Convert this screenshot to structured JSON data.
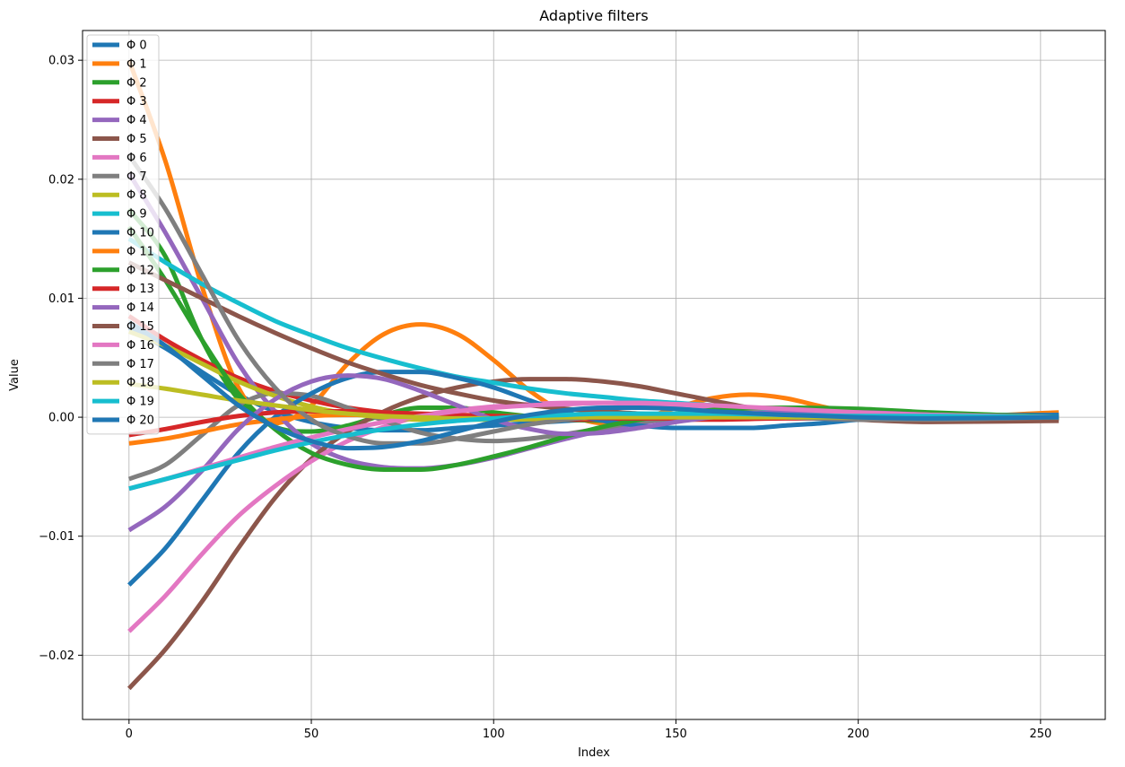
{
  "chart_data": {
    "type": "line",
    "title": "Adaptive filters",
    "xlabel": "Index",
    "ylabel": "Value",
    "xlim": [
      -12.75,
      267.75
    ],
    "ylim": [
      -0.0254,
      0.0325
    ],
    "xticks": [
      0,
      50,
      100,
      150,
      200,
      250
    ],
    "xtick_labels": [
      "0",
      "50",
      "100",
      "150",
      "200",
      "250"
    ],
    "yticks": [
      -0.02,
      -0.01,
      0.0,
      0.01,
      0.02,
      0.03
    ],
    "ytick_labels": [
      "−0.02",
      "−0.01",
      "0.00",
      "0.01",
      "0.02",
      "0.03"
    ],
    "grid": true,
    "legend_position": "top-left",
    "series": [
      {
        "name": "Φ 0",
        "color": "#1f77b4",
        "x": [
          0,
          10,
          20,
          30,
          40,
          50,
          60,
          70,
          80,
          90,
          100,
          120,
          140,
          160,
          180,
          200,
          220,
          255
        ],
        "y": [
          0.0075,
          0.0058,
          0.0038,
          0.0019,
          0.0005,
          -0.0004,
          -0.0009,
          -0.0011,
          -0.0011,
          -0.0009,
          -0.0007,
          -0.0003,
          0.0,
          0.0001,
          0.0001,
          0.0001,
          0.0001,
          0.0
        ]
      },
      {
        "name": "Φ 1",
        "color": "#ff7f0e",
        "x": [
          0,
          10,
          20,
          30,
          40,
          50,
          60,
          70,
          80,
          90,
          100,
          110,
          120,
          130,
          140,
          150,
          160,
          170,
          180,
          190,
          200,
          220,
          255
        ],
        "y": [
          0.03,
          0.0215,
          0.011,
          0.0025,
          -0.0005,
          0.001,
          0.0045,
          0.007,
          0.0078,
          0.007,
          0.0048,
          0.0022,
          0.0003,
          -0.0005,
          -0.0002,
          0.0008,
          0.0016,
          0.0019,
          0.0016,
          0.0009,
          0.0003,
          0.0,
          0.0004
        ]
      },
      {
        "name": "Φ 2",
        "color": "#2ca02c",
        "x": [
          0,
          10,
          20,
          30,
          40,
          50,
          60,
          70,
          80,
          90,
          100,
          120,
          140,
          160,
          180,
          200,
          220,
          255
        ],
        "y": [
          0.0175,
          0.0135,
          0.0065,
          0.0015,
          -0.0008,
          -0.0012,
          -0.0007,
          0.0002,
          0.0008,
          0.0008,
          0.0004,
          -0.0002,
          -0.0003,
          0.0,
          0.0001,
          0.0001,
          0.0,
          0.0
        ]
      },
      {
        "name": "Φ 3",
        "color": "#d62728",
        "x": [
          0,
          10,
          20,
          30,
          40,
          50,
          60,
          70,
          80,
          90,
          100,
          120,
          140,
          160,
          180,
          200,
          220,
          255
        ],
        "y": [
          0.0085,
          0.0065,
          0.0048,
          0.0033,
          0.0022,
          0.0014,
          0.0008,
          0.0004,
          0.0001,
          0.0,
          -0.0001,
          -0.0002,
          -0.0002,
          -0.0002,
          -0.0001,
          -0.0001,
          0.0,
          0.0
        ]
      },
      {
        "name": "Φ 4",
        "color": "#9467bd",
        "x": [
          0,
          10,
          20,
          30,
          40,
          50,
          60,
          70,
          80,
          90,
          100,
          110,
          120,
          130,
          140,
          150,
          160,
          180,
          200,
          220,
          255
        ],
        "y": [
          0.0205,
          0.0155,
          0.01,
          0.0045,
          0.0005,
          -0.0022,
          -0.0036,
          -0.0042,
          -0.0043,
          -0.004,
          -0.0034,
          -0.0026,
          -0.0018,
          -0.0011,
          -0.0005,
          -0.0001,
          0.0002,
          0.0004,
          0.0004,
          0.0002,
          0.0
        ]
      },
      {
        "name": "Φ 5",
        "color": "#8c564b",
        "x": [
          0,
          10,
          20,
          30,
          40,
          50,
          60,
          70,
          80,
          90,
          100,
          110,
          120,
          130,
          140,
          150,
          160,
          170,
          180,
          190,
          200,
          220,
          255
        ],
        "y": [
          -0.0228,
          -0.0195,
          -0.0155,
          -0.011,
          -0.0068,
          -0.0035,
          -0.0012,
          0.0005,
          0.0017,
          0.0025,
          0.003,
          0.0032,
          0.0032,
          0.003,
          0.0026,
          0.002,
          0.0014,
          0.0008,
          0.0003,
          0.0,
          -0.0002,
          -0.0004,
          -0.0003
        ]
      },
      {
        "name": "Φ 6",
        "color": "#e377c2",
        "x": [
          0,
          10,
          20,
          30,
          40,
          50,
          60,
          70,
          80,
          90,
          100,
          110,
          120,
          130,
          140,
          150,
          160,
          180,
          200,
          220,
          255
        ],
        "y": [
          -0.018,
          -0.015,
          -0.0115,
          -0.0083,
          -0.0058,
          -0.0037,
          -0.002,
          -0.0008,
          0.0001,
          0.0006,
          0.0009,
          0.0011,
          0.0012,
          0.0012,
          0.0011,
          0.0009,
          0.0007,
          0.0004,
          0.0002,
          0.0001,
          0.0
        ]
      },
      {
        "name": "Φ 7",
        "color": "#7f7f7f",
        "x": [
          0,
          10,
          20,
          30,
          40,
          50,
          60,
          70,
          80,
          90,
          100,
          110,
          120,
          130,
          140,
          150,
          160,
          170,
          180,
          200,
          220,
          255
        ],
        "y": [
          -0.0052,
          -0.004,
          -0.0015,
          0.001,
          0.002,
          0.0018,
          0.0008,
          -0.0003,
          -0.0013,
          -0.0018,
          -0.002,
          -0.0018,
          -0.0014,
          -0.0009,
          -0.0004,
          -0.0001,
          0.0002,
          0.0003,
          0.0003,
          0.0001,
          0.0,
          -0.0001
        ]
      },
      {
        "name": "Φ 8",
        "color": "#bcbd22",
        "x": [
          0,
          10,
          20,
          30,
          40,
          50,
          60,
          70,
          80,
          90,
          100,
          120,
          140,
          160,
          180,
          200,
          220,
          255
        ],
        "y": [
          0.0072,
          0.006,
          0.0045,
          0.003,
          0.0018,
          0.0009,
          0.0003,
          0.0,
          -0.0002,
          -0.0002,
          -0.0002,
          -0.0001,
          0.0,
          0.0,
          0.0,
          0.0,
          0.0,
          0.0
        ]
      },
      {
        "name": "Φ 9",
        "color": "#17becf",
        "x": [
          0,
          10,
          20,
          30,
          40,
          50,
          60,
          70,
          80,
          90,
          100,
          110,
          120,
          130,
          140,
          150,
          160,
          170,
          180,
          190,
          200,
          220,
          255
        ],
        "y": [
          0.015,
          0.013,
          0.0112,
          0.0096,
          0.0081,
          0.0069,
          0.0058,
          0.0049,
          0.0041,
          0.0034,
          0.0029,
          0.0024,
          0.002,
          0.0017,
          0.0014,
          0.0012,
          0.001,
          0.0008,
          0.0007,
          0.0006,
          0.0005,
          0.0003,
          0.0001
        ]
      },
      {
        "name": "Φ 10",
        "color": "#1f77b4",
        "x": [
          0,
          10,
          20,
          30,
          40,
          50,
          60,
          70,
          80,
          90,
          100,
          110,
          120,
          130,
          140,
          150,
          160,
          170,
          180,
          190,
          200,
          220,
          255
        ],
        "y": [
          -0.0141,
          -0.011,
          -0.007,
          -0.003,
          0.0,
          0.002,
          0.0033,
          0.0038,
          0.0038,
          0.0033,
          0.0025,
          0.0014,
          0.0004,
          -0.0003,
          -0.0007,
          -0.0009,
          -0.0009,
          -0.0009,
          -0.0007,
          -0.0005,
          -0.0002,
          0.0001,
          0.0002
        ]
      },
      {
        "name": "Φ 11",
        "color": "#ff7f0e",
        "x": [
          0,
          10,
          20,
          30,
          40,
          50,
          60,
          70,
          80,
          90,
          100,
          120,
          140,
          160,
          180,
          200,
          220,
          255
        ],
        "y": [
          -0.0022,
          -0.0018,
          -0.0012,
          -0.0006,
          -0.0002,
          0.0001,
          0.0002,
          0.0002,
          0.0002,
          0.0001,
          0.0001,
          0.0,
          0.0,
          0.0,
          0.0,
          0.0,
          0.0,
          0.0
        ]
      },
      {
        "name": "Φ 12",
        "color": "#2ca02c",
        "x": [
          0,
          10,
          20,
          30,
          40,
          50,
          60,
          70,
          80,
          90,
          100,
          110,
          120,
          130,
          140,
          150,
          160,
          180,
          200,
          220,
          255
        ],
        "y": [
          0.016,
          0.0115,
          0.0065,
          0.002,
          -0.001,
          -0.003,
          -0.004,
          -0.0044,
          -0.0044,
          -0.004,
          -0.0033,
          -0.0025,
          -0.0016,
          -0.0008,
          -0.0002,
          0.0003,
          0.0006,
          0.0008,
          0.0007,
          0.0004,
          0.0
        ]
      },
      {
        "name": "Φ 13",
        "color": "#d62728",
        "x": [
          0,
          10,
          20,
          30,
          40,
          50,
          60,
          70,
          80,
          90,
          100,
          120,
          140,
          160,
          180,
          200,
          220,
          255
        ],
        "y": [
          -0.0015,
          -0.001,
          -0.0004,
          0.0001,
          0.0004,
          0.0005,
          0.0005,
          0.0004,
          0.0003,
          0.0002,
          0.0001,
          0.0,
          -0.0001,
          -0.0001,
          0.0,
          0.0,
          0.0,
          0.0
        ]
      },
      {
        "name": "Φ 14",
        "color": "#9467bd",
        "x": [
          0,
          10,
          20,
          30,
          40,
          50,
          60,
          70,
          80,
          90,
          100,
          110,
          120,
          130,
          140,
          150,
          160,
          180,
          200,
          220,
          255
        ],
        "y": [
          -0.0095,
          -0.0075,
          -0.0045,
          -0.001,
          0.0015,
          0.003,
          0.0035,
          0.0032,
          0.0022,
          0.001,
          -0.0002,
          -0.001,
          -0.0014,
          -0.0013,
          -0.0009,
          -0.0004,
          0.0,
          0.0004,
          0.0004,
          0.0002,
          0.0
        ]
      },
      {
        "name": "Φ 15",
        "color": "#8c564b",
        "x": [
          0,
          10,
          20,
          30,
          40,
          50,
          60,
          70,
          80,
          90,
          100,
          110,
          120,
          130,
          140,
          150,
          160,
          180,
          200,
          220,
          255
        ],
        "y": [
          0.013,
          0.0115,
          0.01,
          0.0085,
          0.0071,
          0.0058,
          0.0046,
          0.0036,
          0.0027,
          0.002,
          0.0014,
          0.001,
          0.0007,
          0.0005,
          0.0003,
          0.0002,
          0.0001,
          0.0,
          -0.0001,
          -0.0001,
          -0.0001
        ]
      },
      {
        "name": "Φ 16",
        "color": "#e377c2",
        "x": [
          0,
          10,
          20,
          30,
          40,
          50,
          60,
          70,
          80,
          90,
          100,
          110,
          120,
          130,
          140,
          150,
          160,
          180,
          200,
          220,
          255
        ],
        "y": [
          -0.006,
          -0.0052,
          -0.0043,
          -0.0034,
          -0.0025,
          -0.0017,
          -0.001,
          -0.0004,
          0.0001,
          0.0005,
          0.0008,
          0.001,
          0.0011,
          0.0012,
          0.0012,
          0.0011,
          0.001,
          0.0007,
          0.0004,
          0.0002,
          0.0
        ]
      },
      {
        "name": "Φ 17",
        "color": "#7f7f7f",
        "x": [
          0,
          10,
          20,
          30,
          40,
          50,
          60,
          70,
          80,
          90,
          100,
          110,
          120,
          130,
          140,
          150,
          160,
          180,
          200,
          220,
          255
        ],
        "y": [
          0.022,
          0.0175,
          0.012,
          0.0065,
          0.0025,
          -0.0002,
          -0.0016,
          -0.0022,
          -0.0022,
          -0.0018,
          -0.0012,
          -0.0006,
          -0.0002,
          0.0001,
          0.0002,
          0.0002,
          0.0002,
          0.0,
          -0.0002,
          -0.0002,
          0.0
        ]
      },
      {
        "name": "Φ 18",
        "color": "#bcbd22",
        "x": [
          0,
          10,
          20,
          30,
          40,
          50,
          60,
          70,
          80,
          90,
          100,
          120,
          140,
          160,
          180,
          200,
          220,
          255
        ],
        "y": [
          0.0028,
          0.0024,
          0.0019,
          0.0014,
          0.001,
          0.0006,
          0.0003,
          0.0001,
          0.0,
          -0.0001,
          -0.0001,
          0.0,
          0.0,
          0.0,
          0.0,
          0.0,
          0.0,
          0.0
        ]
      },
      {
        "name": "Φ 19",
        "color": "#17becf",
        "x": [
          0,
          10,
          20,
          30,
          40,
          50,
          60,
          70,
          80,
          90,
          100,
          110,
          120,
          130,
          140,
          150,
          160,
          180,
          200,
          220,
          255
        ],
        "y": [
          -0.006,
          -0.0052,
          -0.0044,
          -0.0036,
          -0.0028,
          -0.0021,
          -0.0015,
          -0.001,
          -0.0006,
          -0.0003,
          -0.0001,
          0.0001,
          0.0002,
          0.0003,
          0.0003,
          0.0003,
          0.0003,
          0.0002,
          0.0001,
          0.0001,
          0.0
        ]
      },
      {
        "name": "Φ 20",
        "color": "#1f77b4",
        "x": [
          0,
          10,
          20,
          30,
          40,
          50,
          60,
          70,
          80,
          90,
          100,
          110,
          120,
          130,
          140,
          150,
          160,
          180,
          200,
          220,
          255
        ],
        "y": [
          0.008,
          0.006,
          0.0035,
          0.001,
          -0.0008,
          -0.002,
          -0.0026,
          -0.0025,
          -0.002,
          -0.0012,
          -0.0004,
          0.0002,
          0.0006,
          0.0008,
          0.0008,
          0.0007,
          0.0005,
          0.0002,
          0.0,
          -0.0001,
          0.0
        ]
      }
    ]
  }
}
